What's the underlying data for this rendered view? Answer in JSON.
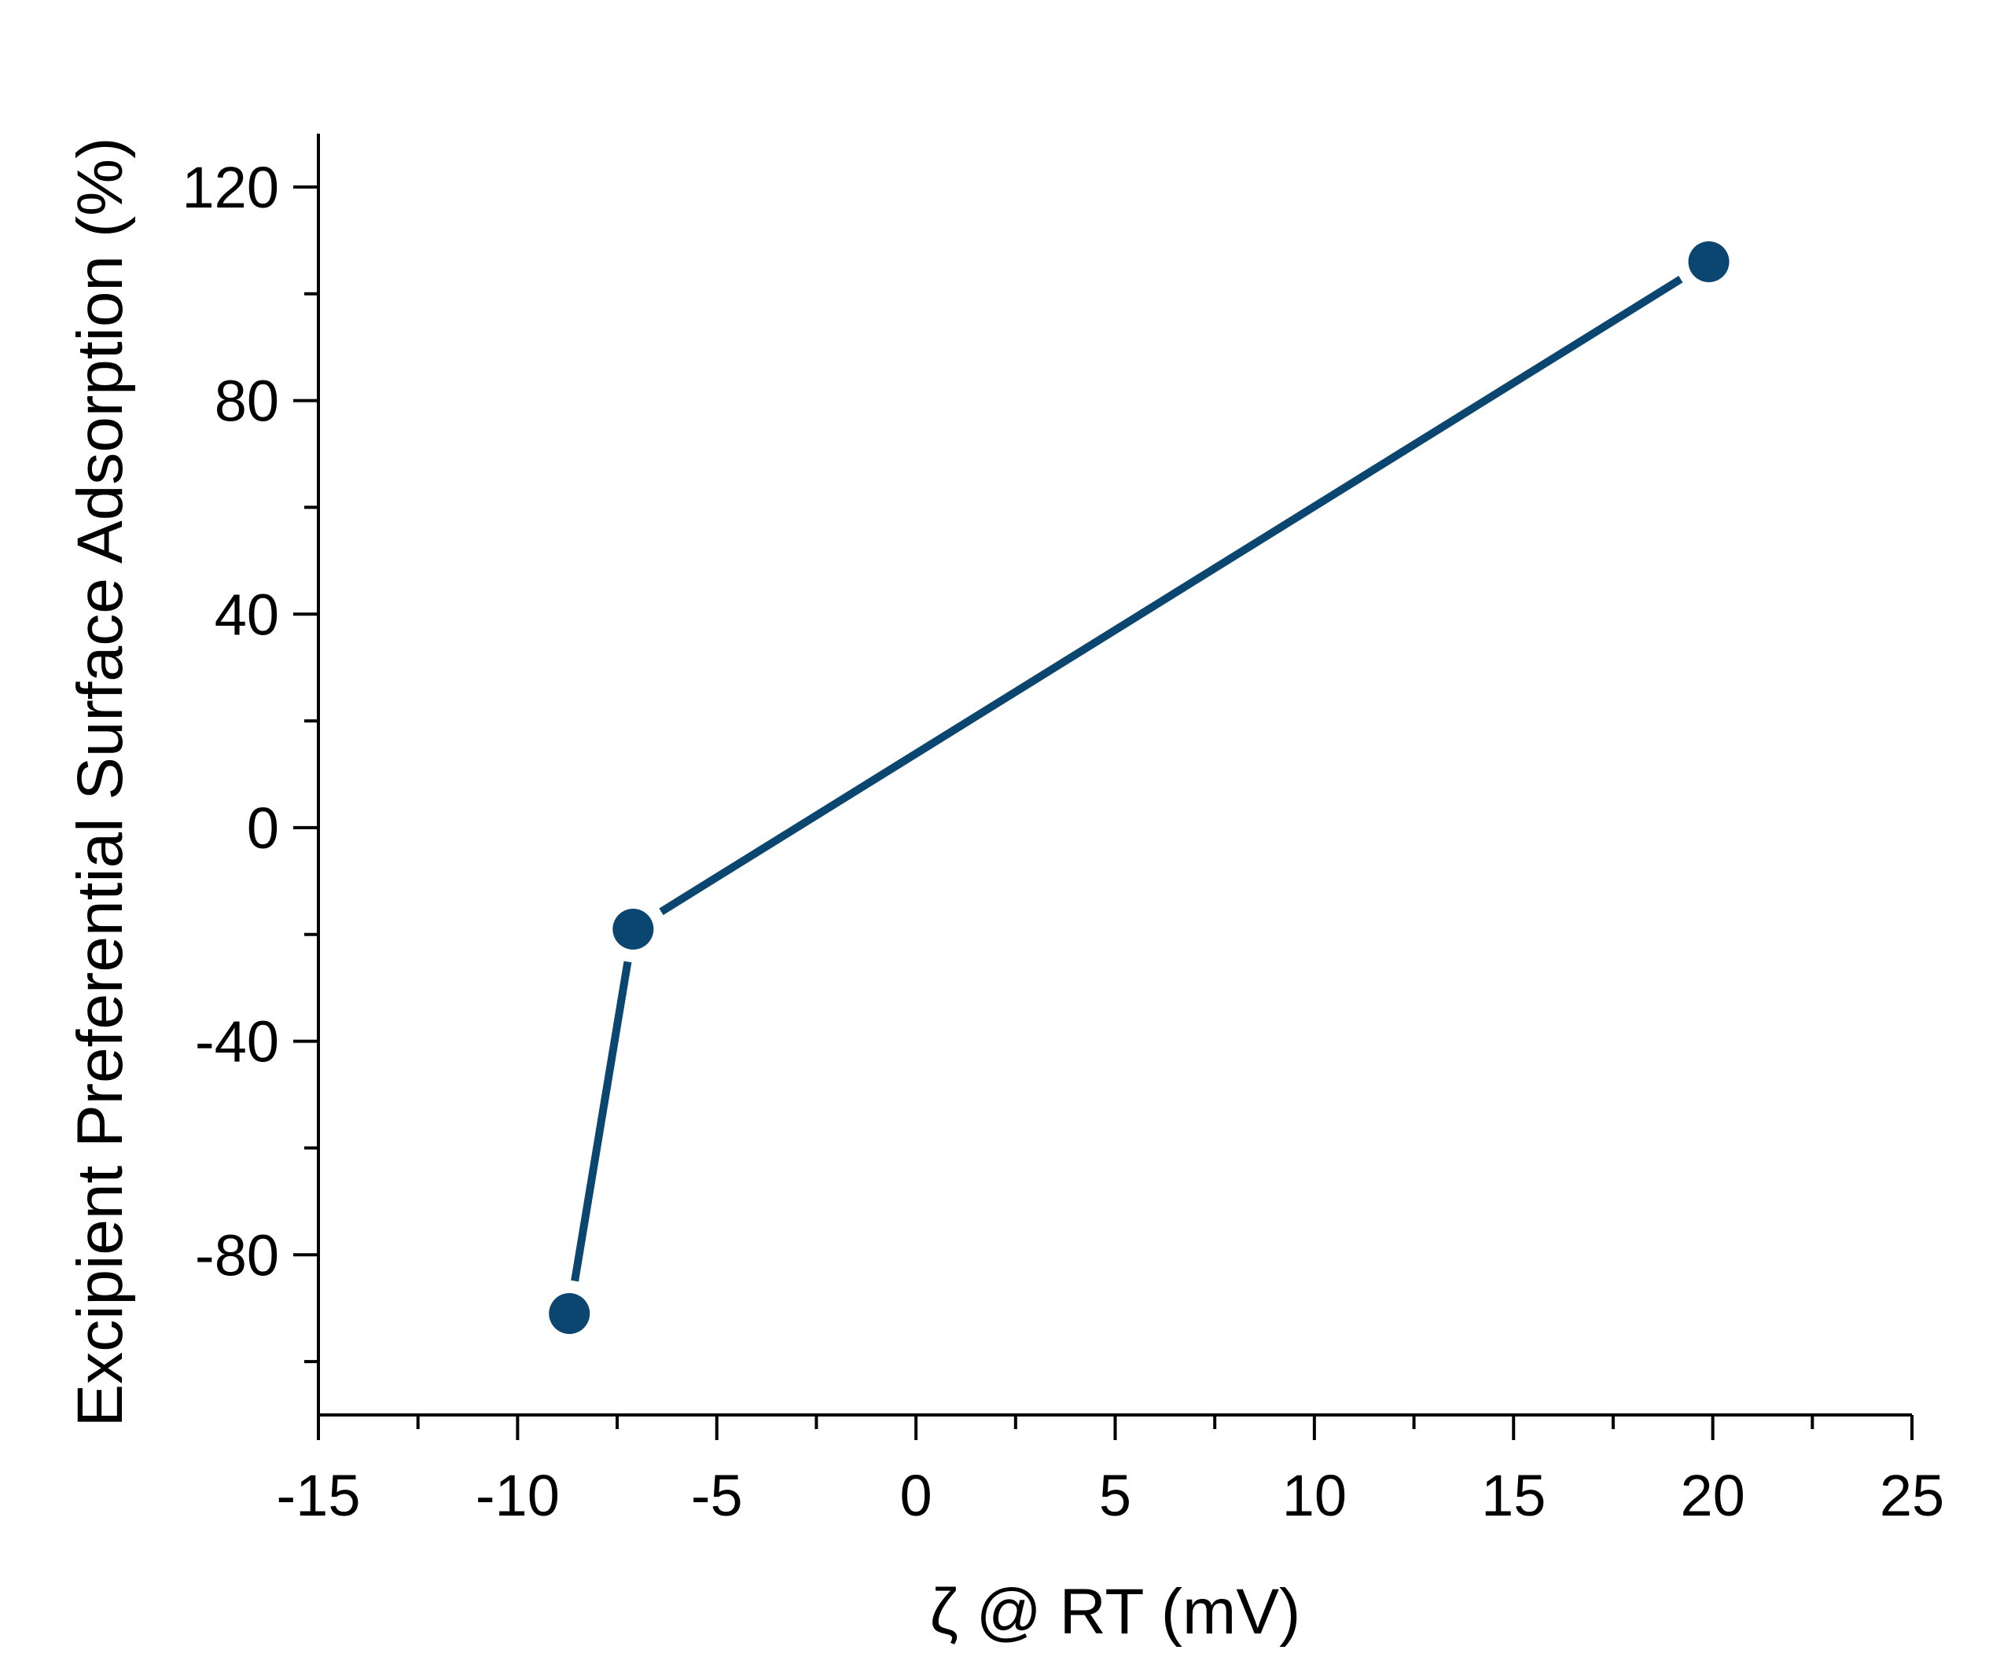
{
  "chart_data": {
    "type": "line",
    "title": "",
    "xlabel": "ζ @ RT (mV)",
    "ylabel": "Excipient Preferential Surface Adsorption (%)",
    "xlim": [
      -15,
      25
    ],
    "ylim": [
      -110,
      130
    ],
    "x_ticks": [
      -15,
      -10,
      -5,
      0,
      5,
      10,
      15,
      20,
      25
    ],
    "x_tick_labels": [
      "-15",
      "-10",
      "-5",
      "0",
      "5",
      "10",
      "15",
      "20",
      "25"
    ],
    "y_ticks": [
      -80,
      -40,
      0,
      40,
      80,
      120
    ],
    "y_tick_labels": [
      "-80",
      "-40",
      "0",
      "40",
      "80",
      "120"
    ],
    "grid": false,
    "legend": "none",
    "series": [
      {
        "x": [
          -8.7,
          -7.1,
          19.9
        ],
        "y": [
          -91,
          -19,
          106
        ],
        "color": "#0a4670",
        "marker": "circle"
      }
    ]
  }
}
